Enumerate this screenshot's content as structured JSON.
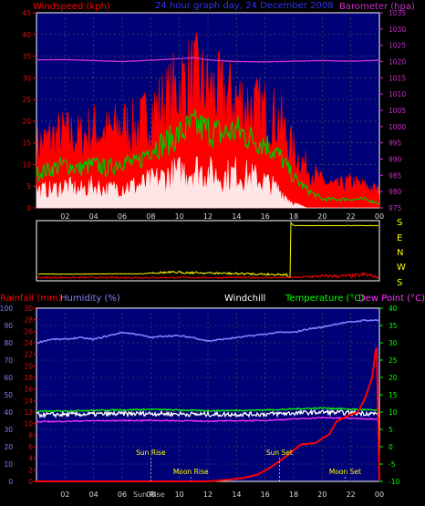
{
  "colors": {
    "background": "#000000",
    "plot_dark": "#000077",
    "frame": "#ffffff",
    "windspeed": "#ff0000",
    "gust_mid": "#00c800",
    "wind_avg": "#ffffff",
    "barometer": "#c832c8",
    "title": "#3232ff",
    "wind_dir": "#ffff00",
    "rain": "#ff0000",
    "humidity": "#8080ff",
    "windchill": "#ffffff",
    "temperature": "#00ff00",
    "dewpoint": "#ff33ff",
    "tick_gray": "#a0a0a0",
    "dash": "#5a5a5a"
  },
  "top": {
    "left_label": "Windspeed (kph)",
    "title": "24 hour graph day, 24 December 2008",
    "right_label": "Barometer (hpa)"
  },
  "compass": [
    "S",
    "E",
    "N",
    "W",
    "S"
  ],
  "bottom": {
    "rain_label": "Rainfall (mm)",
    "humidity_label": "Humidity (%)",
    "windchill_label": "Windchill",
    "temp_label": "Temperature (°C)",
    "dew_label": "Dew Point (°C)",
    "annotations": [
      {
        "text": "Sun Rise",
        "hour": 8.0,
        "row": "upper"
      },
      {
        "text": "Moon Rise",
        "hour": 10.8,
        "row": "lower"
      },
      {
        "text": "Sun Set",
        "hour": 17.0,
        "row": "upper"
      },
      {
        "text": "Moon Set",
        "hour": 21.6,
        "row": "lower"
      }
    ],
    "x_tick_override": {
      "08": "Sun Rise"
    }
  },
  "chart_data": [
    {
      "type": "line",
      "x_ticks": [
        "02",
        "04",
        "06",
        "08",
        "10",
        "12",
        "14",
        "16",
        "18",
        "20",
        "22",
        "00"
      ],
      "xlim_hours": [
        0,
        24
      ],
      "ylim_left": [
        0,
        45
      ],
      "yticks_left": [
        0,
        5,
        10,
        15,
        20,
        25,
        30,
        35,
        40,
        45
      ],
      "ylim_right": [
        975,
        1035
      ],
      "yticks_right": [
        975,
        980,
        985,
        990,
        995,
        1000,
        1005,
        1010,
        1015,
        1020,
        1025,
        1030,
        1035
      ],
      "series": [
        {
          "color": "red",
          "hours": [
            0,
            1,
            2,
            3,
            4,
            5,
            6,
            7,
            8,
            9,
            10,
            11,
            12,
            13,
            14,
            15,
            16,
            17,
            18,
            19,
            20,
            21,
            22,
            23,
            24
          ],
          "values": [
            14,
            16,
            17,
            16,
            18,
            17,
            19,
            18,
            22,
            24,
            28,
            30,
            27,
            26,
            25,
            23,
            22,
            20,
            13,
            9,
            6,
            5,
            6,
            5,
            4
          ]
        },
        {
          "color": "green",
          "hours": [
            0,
            1,
            2,
            3,
            4,
            5,
            6,
            7,
            8,
            9,
            10,
            11,
            12,
            13,
            14,
            15,
            16,
            17,
            18,
            19,
            20,
            21,
            22,
            23,
            24
          ],
          "values": [
            8,
            9,
            10,
            9,
            10,
            9,
            11,
            10,
            14,
            15,
            17,
            19,
            18,
            17,
            18,
            16,
            15,
            12,
            7,
            4,
            2,
            2,
            2,
            2,
            1
          ]
        },
        {
          "color": "white",
          "hours": [
            0,
            1,
            2,
            3,
            4,
            5,
            6,
            7,
            8,
            9,
            10,
            11,
            12,
            13,
            14,
            15,
            16,
            17,
            18,
            19,
            20,
            21,
            22,
            23,
            24
          ],
          "values": [
            4,
            4,
            5,
            4,
            5,
            4,
            5,
            5,
            6,
            7,
            8,
            9,
            8,
            7,
            8,
            7,
            6,
            4,
            1,
            0,
            0,
            0,
            0,
            0,
            0
          ]
        },
        {
          "color": "magenta",
          "axis": "right",
          "hours": [
            0,
            2,
            4,
            6,
            8,
            10,
            11,
            12,
            14,
            16,
            18,
            20,
            22,
            24
          ],
          "values": [
            1020.5,
            1020.6,
            1020.3,
            1020.0,
            1020.4,
            1020.9,
            1021.2,
            1020.5,
            1020.0,
            1019.9,
            1020.1,
            1020.3,
            1020.1,
            1020.4
          ]
        }
      ]
    },
    {
      "type": "line",
      "labels": [
        "S",
        "E",
        "N",
        "W",
        "S"
      ],
      "series": [
        {
          "color": "yellow",
          "hours": [
            0,
            2,
            4,
            6,
            7.5,
            8,
            10,
            12,
            14,
            16,
            17.5,
            18,
            24
          ],
          "values_deg": [
            148,
            149,
            148,
            147,
            147,
            140,
            138,
            142,
            146,
            149,
            152,
            200,
            200
          ]
        },
        {
          "color": "red",
          "hours": [
            0,
            18,
            20,
            22,
            23,
            24
          ],
          "values_kph": [
            1,
            1,
            2,
            2,
            3,
            1
          ]
        }
      ]
    },
    {
      "type": "line",
      "x_ticks": [
        "02",
        "04",
        "06",
        "08",
        "10",
        "12",
        "14",
        "16",
        "18",
        "20",
        "22",
        "00"
      ],
      "xlim_hours": [
        0,
        24
      ],
      "ylim_humidity": [
        0,
        100
      ],
      "yticks_humidity": [
        0,
        10,
        20,
        30,
        40,
        50,
        60,
        70,
        80,
        90,
        100
      ],
      "ylim_rain": [
        0,
        30
      ],
      "yticks_rain": [
        0,
        2,
        4,
        6,
        8,
        10,
        12,
        14,
        16,
        18,
        20,
        22,
        24,
        26,
        28,
        30
      ],
      "ylim_temp": [
        -10,
        40
      ],
      "yticks_temp": [
        -10,
        -5,
        0,
        5,
        10,
        15,
        20,
        25,
        30,
        35,
        40
      ],
      "series": [
        {
          "color": "blue",
          "hours": [
            0,
            1,
            2,
            3,
            4,
            5,
            6,
            7,
            8,
            9,
            10,
            11,
            12,
            13,
            14,
            15,
            16,
            17,
            18,
            19,
            20,
            21,
            22,
            23,
            24
          ],
          "values": [
            80,
            82,
            82,
            83,
            82,
            84,
            86,
            85,
            83,
            84,
            84,
            83,
            81,
            82,
            83,
            84,
            85,
            86,
            86,
            88,
            89,
            91,
            92,
            93,
            93
          ]
        },
        {
          "color": "green",
          "hours": [
            0,
            4,
            8,
            12,
            16,
            20,
            24
          ],
          "values": [
            10.2,
            10.5,
            10.8,
            10.4,
            10.6,
            11.2,
            10.5
          ]
        },
        {
          "color": "white",
          "hours": [
            0,
            4,
            8,
            12,
            16,
            20,
            24
          ],
          "values": [
            9.2,
            9.4,
            9.6,
            9.3,
            9.4,
            10.0,
            9.5
          ]
        },
        {
          "color": "magenta",
          "hours": [
            0,
            4,
            8,
            12,
            16,
            20,
            24
          ],
          "values": [
            7.2,
            7.5,
            7.6,
            7.4,
            7.6,
            8.4,
            8.0
          ]
        },
        {
          "color": "red",
          "hours": [
            0,
            12.0,
            13.5,
            14.5,
            15.5,
            16.5,
            17.5,
            18.5,
            19.5,
            20.5,
            21.0,
            21.5,
            22.0,
            22.5,
            23.0,
            23.5,
            23.8,
            24.0
          ],
          "values": [
            0,
            0,
            0.3,
            0.6,
            1.2,
            2.6,
            4.4,
            6.4,
            6.6,
            8.2,
            10.4,
            11.0,
            11.6,
            12.0,
            14.4,
            18.0,
            24.0,
            0
          ]
        }
      ]
    }
  ]
}
